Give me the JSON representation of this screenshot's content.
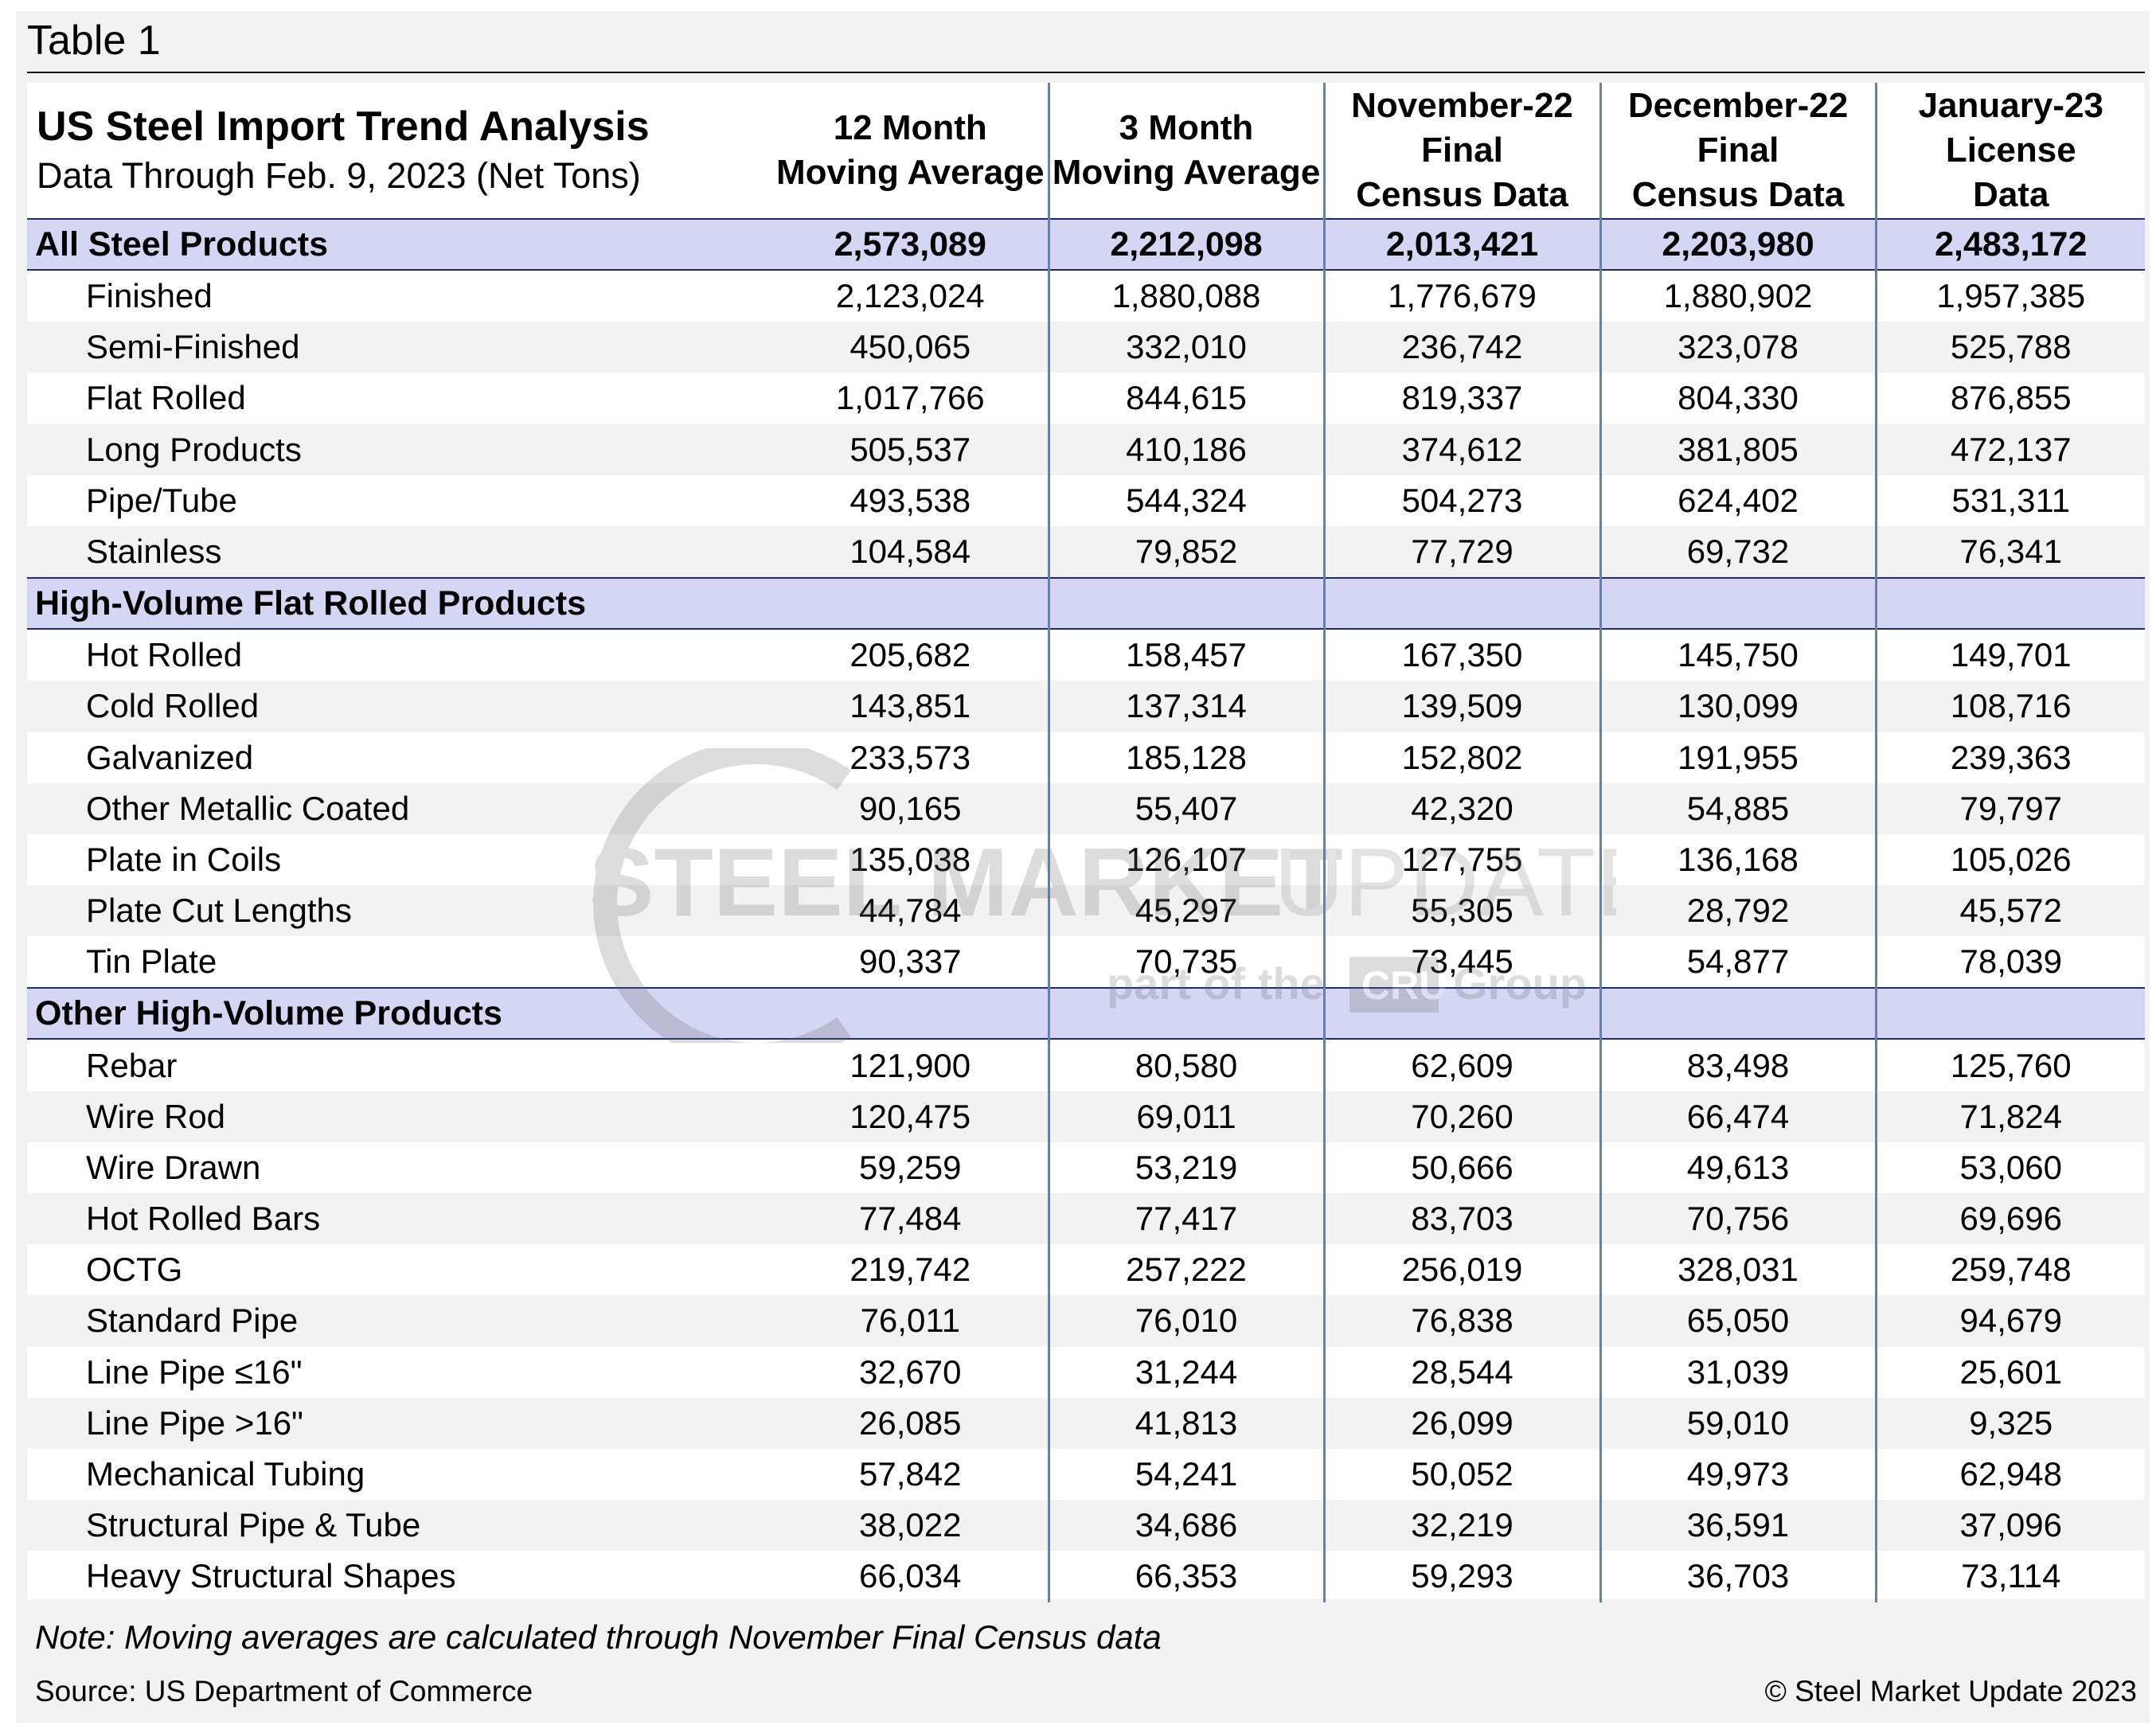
{
  "figure_label": "Table 1",
  "header": {
    "title": "US Steel Import Trend Analysis",
    "subtitle": "Data Through Feb. 9, 2023 (Net Tons)",
    "columns": [
      [
        "12 Month",
        "Moving Average"
      ],
      [
        "3 Month",
        "Moving Average"
      ],
      [
        "November-22",
        "Final",
        "Census Data"
      ],
      [
        "December-22",
        "Final",
        "Census Data"
      ],
      [
        "January-23",
        "License",
        "Data"
      ]
    ]
  },
  "sections": [
    {
      "label": "All Steel Products",
      "values": [
        "2,573,089",
        "2,212,098",
        "2,013,421",
        "2,203,980",
        "2,483,172"
      ],
      "rows": [
        {
          "label": "Finished",
          "values": [
            "2,123,024",
            "1,880,088",
            "1,776,679",
            "1,880,902",
            "1,957,385"
          ]
        },
        {
          "label": "Semi-Finished",
          "values": [
            "450,065",
            "332,010",
            "236,742",
            "323,078",
            "525,788"
          ]
        },
        {
          "label": "Flat Rolled",
          "values": [
            "1,017,766",
            "844,615",
            "819,337",
            "804,330",
            "876,855"
          ]
        },
        {
          "label": "Long Products",
          "values": [
            "505,537",
            "410,186",
            "374,612",
            "381,805",
            "472,137"
          ]
        },
        {
          "label": "Pipe/Tube",
          "values": [
            "493,538",
            "544,324",
            "504,273",
            "624,402",
            "531,311"
          ]
        },
        {
          "label": "Stainless",
          "values": [
            "104,584",
            "79,852",
            "77,729",
            "69,732",
            "76,341"
          ]
        }
      ]
    },
    {
      "label": "High-Volume Flat Rolled Products",
      "values": [
        "",
        "",
        "",
        "",
        ""
      ],
      "rows": [
        {
          "label": "Hot Rolled",
          "values": [
            "205,682",
            "158,457",
            "167,350",
            "145,750",
            "149,701"
          ]
        },
        {
          "label": "Cold Rolled",
          "values": [
            "143,851",
            "137,314",
            "139,509",
            "130,099",
            "108,716"
          ]
        },
        {
          "label": "Galvanized",
          "values": [
            "233,573",
            "185,128",
            "152,802",
            "191,955",
            "239,363"
          ]
        },
        {
          "label": "Other Metallic Coated",
          "values": [
            "90,165",
            "55,407",
            "42,320",
            "54,885",
            "79,797"
          ]
        },
        {
          "label": "Plate in Coils",
          "values": [
            "135,038",
            "126,107",
            "127,755",
            "136,168",
            "105,026"
          ]
        },
        {
          "label": "Plate Cut Lengths",
          "values": [
            "44,784",
            "45,297",
            "55,305",
            "28,792",
            "45,572"
          ]
        },
        {
          "label": "Tin Plate",
          "values": [
            "90,337",
            "70,735",
            "73,445",
            "54,877",
            "78,039"
          ]
        }
      ]
    },
    {
      "label": "Other High-Volume Products",
      "values": [
        "",
        "",
        "",
        "",
        ""
      ],
      "rows": [
        {
          "label": "Rebar",
          "values": [
            "121,900",
            "80,580",
            "62,609",
            "83,498",
            "125,760"
          ]
        },
        {
          "label": "Wire Rod",
          "values": [
            "120,475",
            "69,011",
            "70,260",
            "66,474",
            "71,824"
          ]
        },
        {
          "label": "Wire Drawn",
          "values": [
            "59,259",
            "53,219",
            "50,666",
            "49,613",
            "53,060"
          ]
        },
        {
          "label": "Hot Rolled Bars",
          "values": [
            "77,484",
            "77,417",
            "83,703",
            "70,756",
            "69,696"
          ]
        },
        {
          "label": "OCTG",
          "values": [
            "219,742",
            "257,222",
            "256,019",
            "328,031",
            "259,748"
          ]
        },
        {
          "label": "Standard Pipe",
          "values": [
            "76,011",
            "76,010",
            "76,838",
            "65,050",
            "94,679"
          ]
        },
        {
          "label": "Line Pipe ≤16\"",
          "values": [
            "32,670",
            "31,244",
            "28,544",
            "31,039",
            "25,601"
          ]
        },
        {
          "label": "Line Pipe >16\"",
          "values": [
            "26,085",
            "41,813",
            "26,099",
            "59,010",
            "9,325"
          ]
        },
        {
          "label": "Mechanical Tubing",
          "values": [
            "57,842",
            "54,241",
            "50,052",
            "49,973",
            "62,948"
          ]
        },
        {
          "label": "Structural Pipe & Tube",
          "values": [
            "38,022",
            "34,686",
            "32,219",
            "36,591",
            "37,096"
          ]
        },
        {
          "label": "Heavy Structural Shapes",
          "values": [
            "66,034",
            "66,353",
            "59,293",
            "36,703",
            "73,114"
          ]
        }
      ]
    }
  ],
  "note": "Note: Moving averages are calculated through November Final Census data",
  "source": "Source: US Department of Commerce",
  "copyright": "© Steel Market Update 2023",
  "watermark": {
    "line1_bold": "STEEL MARKET",
    "line1_light": "UPDATE",
    "line2_pre": "part of the",
    "line2_box": "CRU",
    "line2_post": "Group"
  },
  "colors": {
    "section_band": "#d4d6f4",
    "section_rule": "#1b2d6b",
    "column_rule": "#6a7fa8",
    "alt_row": "#f2f2f2"
  }
}
